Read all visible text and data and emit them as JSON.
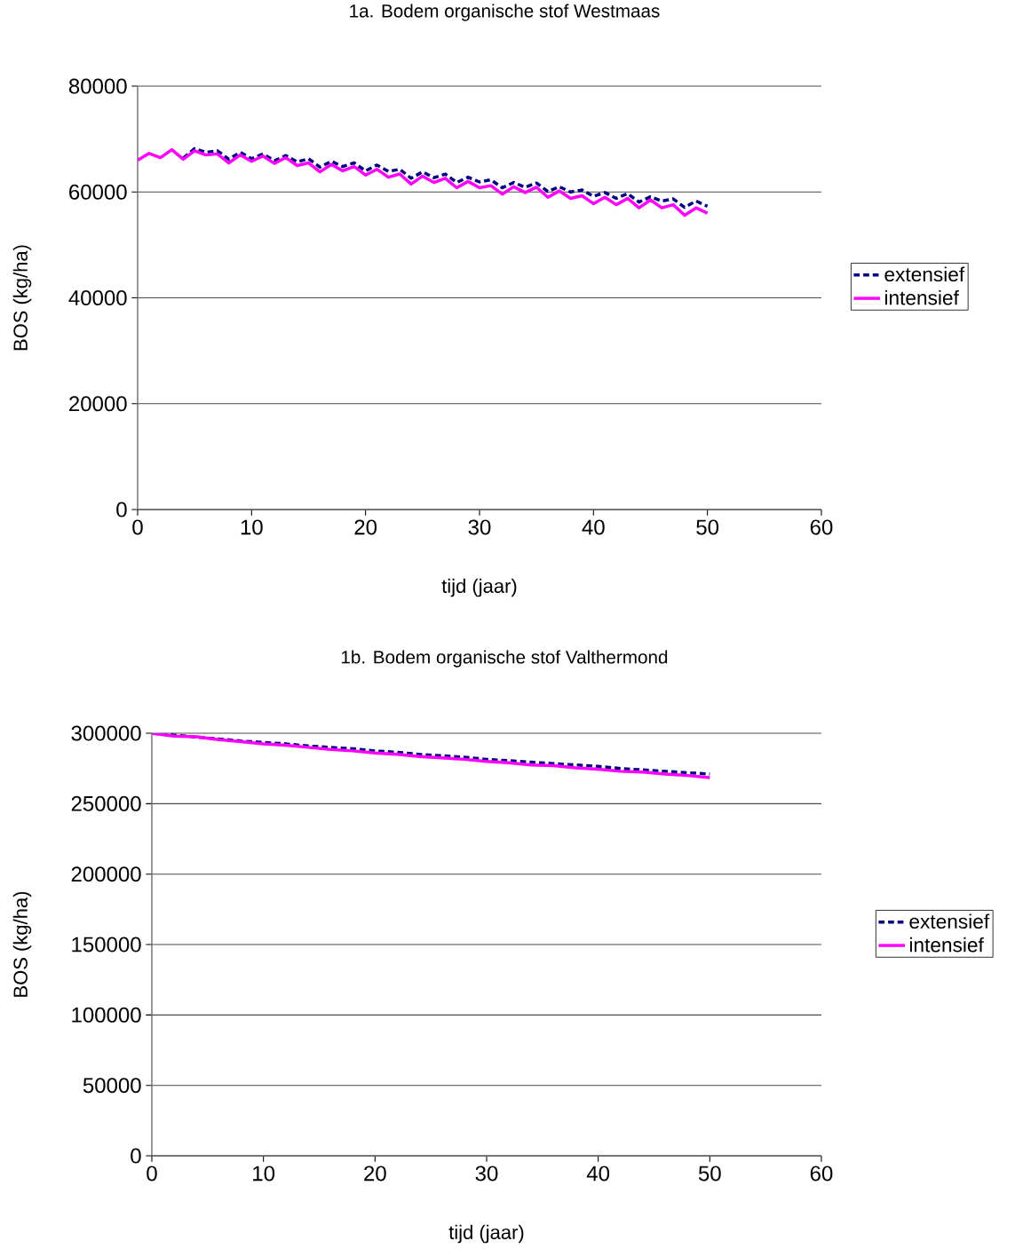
{
  "chart_data": [
    {
      "type": "line",
      "title": "1a. Bodem organische stof Westmaas",
      "xlabel": "tijd (jaar)",
      "ylabel": "BOS (kg/ha)",
      "x": [
        0,
        1,
        2,
        3,
        4,
        5,
        6,
        7,
        8,
        9,
        10,
        11,
        12,
        13,
        14,
        15,
        16,
        17,
        18,
        19,
        20,
        21,
        22,
        23,
        24,
        25,
        26,
        27,
        28,
        29,
        30,
        31,
        32,
        33,
        34,
        35,
        36,
        37,
        38,
        39,
        40,
        41,
        42,
        43,
        44,
        45,
        46,
        47,
        48,
        49,
        50
      ],
      "xlim": [
        0,
        60
      ],
      "ylim": [
        0,
        80000
      ],
      "xticks": [
        0,
        10,
        20,
        30,
        40,
        50,
        60
      ],
      "yticks": [
        0,
        20000,
        40000,
        60000,
        80000
      ],
      "grid": "y",
      "legend": "right",
      "series": [
        {
          "name": "extensief",
          "color": "#000080",
          "line_style": "dashed",
          "values": [
            null,
            null,
            null,
            null,
            66400,
            68200,
            67500,
            67800,
            66200,
            67500,
            66300,
            67200,
            65900,
            66900,
            65700,
            66300,
            64700,
            65800,
            64800,
            65500,
            64000,
            65100,
            63900,
            64300,
            62600,
            63800,
            62700,
            63400,
            61800,
            62800,
            61900,
            62300,
            60800,
            61800,
            60900,
            61700,
            60100,
            61000,
            60000,
            60400,
            59200,
            59900,
            58800,
            59700,
            58100,
            59100,
            58300,
            58700,
            57100,
            58300,
            57300
          ]
        },
        {
          "name": "intensief",
          "color": "#ff00ff",
          "line_style": "solid",
          "values": [
            66000,
            67300,
            66500,
            68000,
            66200,
            67800,
            67000,
            67200,
            65500,
            67000,
            65800,
            66800,
            65400,
            66500,
            65000,
            65500,
            63800,
            65200,
            64000,
            64800,
            63200,
            64300,
            62800,
            63400,
            61500,
            63000,
            61800,
            62600,
            60800,
            62000,
            60800,
            61200,
            59600,
            61000,
            59900,
            60900,
            59000,
            60200,
            58800,
            59300,
            57800,
            59000,
            57600,
            58800,
            57000,
            58500,
            57000,
            57600,
            55600,
            57000,
            56000
          ]
        }
      ]
    },
    {
      "type": "line",
      "title": "1b. Bodem organische stof Valthermond",
      "xlabel": "tijd (jaar)",
      "ylabel": "BOS (kg/ha)",
      "x": [
        0,
        2,
        4,
        6,
        8,
        10,
        12,
        14,
        16,
        18,
        20,
        22,
        24,
        26,
        28,
        30,
        32,
        34,
        36,
        38,
        40,
        42,
        44,
        46,
        48,
        50
      ],
      "xlim": [
        0,
        60
      ],
      "ylim": [
        0,
        300000
      ],
      "xticks": [
        0,
        10,
        20,
        30,
        40,
        50,
        60
      ],
      "yticks": [
        0,
        50000,
        100000,
        150000,
        200000,
        250000,
        300000
      ],
      "grid": "y",
      "legend": "right",
      "series": [
        {
          "name": "extensief",
          "color": "#000080",
          "line_style": "dashed",
          "values": [
            300000,
            null,
            null,
            296000,
            294500,
            293500,
            292500,
            291000,
            290000,
            289000,
            287500,
            286500,
            285000,
            284000,
            283000,
            281500,
            280500,
            279500,
            278500,
            277500,
            276500,
            275000,
            274000,
            273000,
            272000,
            271000
          ]
        },
        {
          "name": "intensief",
          "color": "#ff00ff",
          "line_style": "solid",
          "values": [
            300000,
            298000,
            297500,
            295500,
            294000,
            292500,
            291500,
            290000,
            288500,
            287500,
            286000,
            285000,
            283500,
            282500,
            281500,
            280000,
            279000,
            277500,
            277000,
            275500,
            274500,
            273000,
            272500,
            271000,
            270000,
            268500
          ]
        }
      ]
    }
  ]
}
